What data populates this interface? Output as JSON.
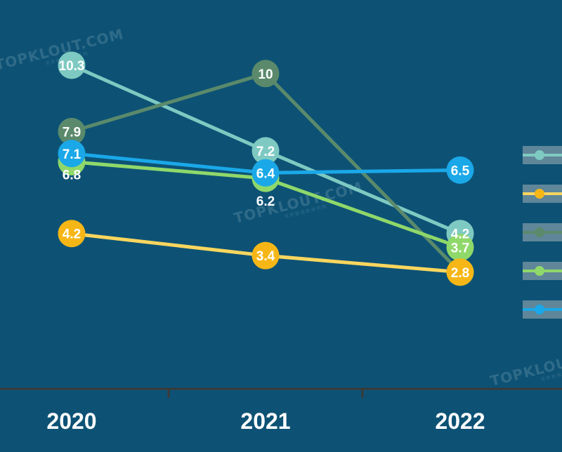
{
  "chart_data": {
    "type": "line",
    "categories": [
      "2020",
      "2021",
      "2022"
    ],
    "ylim": [
      0,
      11
    ],
    "grid": false,
    "legend": "right",
    "series": [
      {
        "values": [
          10.3,
          7.2,
          4.2
        ],
        "labels": [
          "10.3",
          "7.2",
          "4.2"
        ],
        "color": "#7ecac2"
      },
      {
        "values": [
          4.2,
          3.4,
          2.8
        ],
        "labels": [
          "4.2",
          "3.4",
          ""
        ],
        "color": "#f9d65e",
        "marker_color": "#f6b716"
      },
      {
        "values": [
          7.9,
          10.0,
          2.8
        ],
        "labels": [
          "7.9",
          "10",
          "2.8"
        ],
        "color": "#5a8a6b"
      },
      {
        "values": [
          6.8,
          6.2,
          3.7
        ],
        "labels": [
          "6.8",
          "6.2",
          "3.7"
        ],
        "color": "#8fd86a"
      },
      {
        "values": [
          7.1,
          6.4,
          6.5
        ],
        "labels": [
          "7.1",
          "6.4",
          "6.5"
        ],
        "color": "#1aa8e8"
      }
    ]
  },
  "watermark": {
    "text": "TOPKLOUT.COM",
    "subtext": "克 劳 锐 指 数 研 究 院"
  }
}
